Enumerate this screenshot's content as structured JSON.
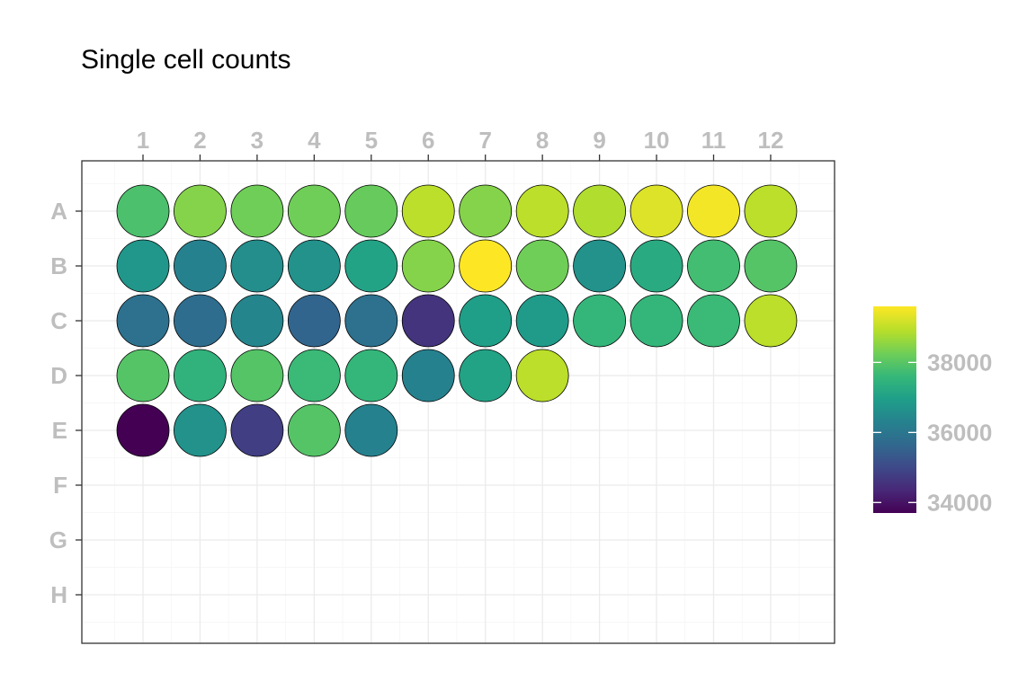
{
  "chart_data": {
    "type": "scatter",
    "title": "Single cell counts",
    "xlabel": "",
    "ylabel": "",
    "x_categories": [
      "1",
      "2",
      "3",
      "4",
      "5",
      "6",
      "7",
      "8",
      "9",
      "10",
      "11",
      "12"
    ],
    "y_categories": [
      "A",
      "B",
      "C",
      "D",
      "E",
      "F",
      "G",
      "H"
    ],
    "x_axis_position": "top",
    "grid": true,
    "legend": {
      "position": "right",
      "type": "colorbar",
      "palette": "viridis",
      "min": 33700,
      "max": 39600,
      "breaks": [
        34000,
        36000,
        38000
      ],
      "break_labels": [
        "34000",
        "36000",
        "38000"
      ]
    },
    "wells": [
      {
        "row": "A",
        "col": 1,
        "value": 37900
      },
      {
        "row": "A",
        "col": 2,
        "value": 38500
      },
      {
        "row": "A",
        "col": 3,
        "value": 38300
      },
      {
        "row": "A",
        "col": 4,
        "value": 38300
      },
      {
        "row": "A",
        "col": 5,
        "value": 38200
      },
      {
        "row": "A",
        "col": 6,
        "value": 39000
      },
      {
        "row": "A",
        "col": 7,
        "value": 38500
      },
      {
        "row": "A",
        "col": 8,
        "value": 39000
      },
      {
        "row": "A",
        "col": 9,
        "value": 38900
      },
      {
        "row": "A",
        "col": 10,
        "value": 39300
      },
      {
        "row": "A",
        "col": 11,
        "value": 39500
      },
      {
        "row": "A",
        "col": 12,
        "value": 39000
      },
      {
        "row": "B",
        "col": 1,
        "value": 36800
      },
      {
        "row": "B",
        "col": 2,
        "value": 36300
      },
      {
        "row": "B",
        "col": 3,
        "value": 36600
      },
      {
        "row": "B",
        "col": 4,
        "value": 36700
      },
      {
        "row": "B",
        "col": 5,
        "value": 37100
      },
      {
        "row": "B",
        "col": 6,
        "value": 38500
      },
      {
        "row": "B",
        "col": 7,
        "value": 39600
      },
      {
        "row": "B",
        "col": 8,
        "value": 38300
      },
      {
        "row": "B",
        "col": 9,
        "value": 36700
      },
      {
        "row": "B",
        "col": 10,
        "value": 37300
      },
      {
        "row": "B",
        "col": 11,
        "value": 37800
      },
      {
        "row": "B",
        "col": 12,
        "value": 38000
      },
      {
        "row": "C",
        "col": 1,
        "value": 35900
      },
      {
        "row": "C",
        "col": 2,
        "value": 35800
      },
      {
        "row": "C",
        "col": 3,
        "value": 36400
      },
      {
        "row": "C",
        "col": 4,
        "value": 35600
      },
      {
        "row": "C",
        "col": 5,
        "value": 35900
      },
      {
        "row": "C",
        "col": 6,
        "value": 34600
      },
      {
        "row": "C",
        "col": 7,
        "value": 37000
      },
      {
        "row": "C",
        "col": 8,
        "value": 36900
      },
      {
        "row": "C",
        "col": 9,
        "value": 37600
      },
      {
        "row": "C",
        "col": 10,
        "value": 37600
      },
      {
        "row": "C",
        "col": 11,
        "value": 37700
      },
      {
        "row": "C",
        "col": 12,
        "value": 39000
      },
      {
        "row": "D",
        "col": 1,
        "value": 38000
      },
      {
        "row": "D",
        "col": 2,
        "value": 37500
      },
      {
        "row": "D",
        "col": 3,
        "value": 38000
      },
      {
        "row": "D",
        "col": 4,
        "value": 37700
      },
      {
        "row": "D",
        "col": 5,
        "value": 37600
      },
      {
        "row": "D",
        "col": 6,
        "value": 36300
      },
      {
        "row": "D",
        "col": 7,
        "value": 37100
      },
      {
        "row": "D",
        "col": 8,
        "value": 39000
      },
      {
        "row": "E",
        "col": 1,
        "value": 33700
      },
      {
        "row": "E",
        "col": 2,
        "value": 36700
      },
      {
        "row": "E",
        "col": 3,
        "value": 34800
      },
      {
        "row": "E",
        "col": 4,
        "value": 38000
      },
      {
        "row": "E",
        "col": 5,
        "value": 36300
      }
    ]
  }
}
